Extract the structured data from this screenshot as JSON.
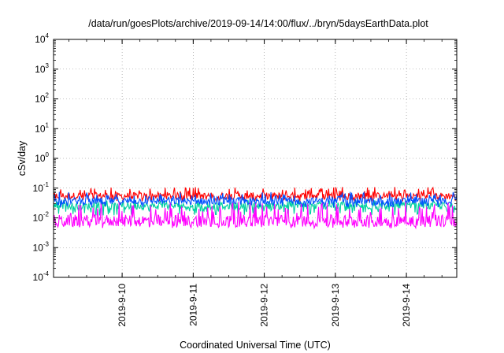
{
  "chart_data": {
    "type": "line",
    "title": "/data/run/goesPlots/archive/2019-09-14/14:00/flux/../bryn/5daysEarthData.plot",
    "xlabel": "Coordinated Universal Time (UTC)",
    "ylabel": "cSv/day",
    "y_scale": "log",
    "ylim": [
      0.0001,
      10000
    ],
    "xlim": [
      "2019-09-09 00:50",
      "2019-09-14 17:00"
    ],
    "y_ticks": [
      {
        "base": "10",
        "exp": "-4",
        "value": 0.0001
      },
      {
        "base": "10",
        "exp": "-3",
        "value": 0.001
      },
      {
        "base": "10",
        "exp": "-2",
        "value": 0.01
      },
      {
        "base": "10",
        "exp": "-1",
        "value": 0.1
      },
      {
        "base": "10",
        "exp": "0",
        "value": 1
      },
      {
        "base": "10",
        "exp": "1",
        "value": 10
      },
      {
        "base": "10",
        "exp": "2",
        "value": 100
      },
      {
        "base": "10",
        "exp": "3",
        "value": 1000
      },
      {
        "base": "10",
        "exp": "4",
        "value": 10000
      }
    ],
    "x_ticks": [
      {
        "label": "2019-9-10",
        "value": "2019-09-10 00:00"
      },
      {
        "label": "2019-9-11",
        "value": "2019-09-11 00:00"
      },
      {
        "label": "2019-9-12",
        "value": "2019-09-12 00:00"
      },
      {
        "label": "2019-9-13",
        "value": "2019-09-13 00:00"
      },
      {
        "label": "2019-9-14",
        "value": "2019-09-14 00:00"
      }
    ],
    "grid": true,
    "series": [
      {
        "color": "#ff0000",
        "median": 0.055,
        "low": 0.035,
        "high": 0.11
      },
      {
        "color": "#00d0a0",
        "median": 0.025,
        "low": 0.012,
        "high": 0.04
      },
      {
        "color": "#0050ff",
        "median": 0.037,
        "low": 0.022,
        "high": 0.075
      },
      {
        "color": "#ff00ff",
        "median": 0.008,
        "low": 0.0045,
        "high": 0.035
      }
    ]
  }
}
